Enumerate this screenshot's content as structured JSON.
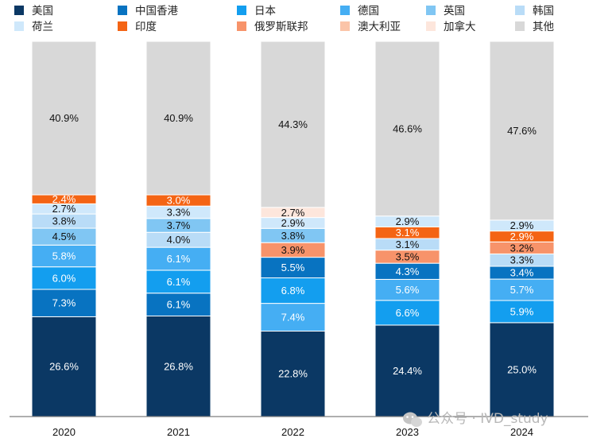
{
  "chart_data": {
    "type": "bar",
    "stacked": true,
    "categories": [
      "2020",
      "2021",
      "2022",
      "2023",
      "2024"
    ],
    "ylim": [
      0,
      100
    ],
    "grid": false,
    "legend_position": "top",
    "series": [
      {
        "name": "美国",
        "color": "#0b3864",
        "values": [
          26.6,
          26.8,
          22.8,
          24.4,
          25.0
        ]
      },
      {
        "name": "中国香港",
        "color": "#0873c1",
        "values": [
          7.3,
          6.1,
          5.5,
          4.3,
          3.4
        ]
      },
      {
        "name": "日本",
        "color": "#139eef",
        "values": [
          6.0,
          6.1,
          6.8,
          6.6,
          5.9
        ]
      },
      {
        "name": "德国",
        "color": "#45aef3",
        "values": [
          5.8,
          6.1,
          7.4,
          5.6,
          5.7
        ]
      },
      {
        "name": "英国",
        "color": "#80c6f3",
        "values": [
          4.5,
          3.7,
          3.8,
          null,
          null
        ]
      },
      {
        "name": "韩国",
        "color": "#b9dcf7",
        "values": [
          3.8,
          4.0,
          null,
          3.1,
          3.3
        ]
      },
      {
        "name": "荷兰",
        "color": "#cfe8fb",
        "values": [
          2.7,
          3.3,
          2.9,
          2.9,
          2.9
        ]
      },
      {
        "name": "印度",
        "color": "#f46414",
        "values": [
          2.4,
          3.0,
          null,
          3.1,
          2.9
        ]
      },
      {
        "name": "俄罗斯联邦",
        "color": "#f7936a",
        "values": [
          null,
          null,
          3.9,
          3.5,
          3.2
        ]
      },
      {
        "name": "澳大利亚",
        "color": "#fbc4a8",
        "values": [
          null,
          null,
          null,
          null,
          null
        ]
      },
      {
        "name": "加拿大",
        "color": "#fde6dc",
        "values": [
          null,
          null,
          2.7,
          null,
          null
        ]
      },
      {
        "name": "其他",
        "color": "#d8d8d8",
        "values": [
          40.9,
          40.9,
          44.3,
          46.6,
          47.6
        ]
      }
    ],
    "stack_order": [
      [
        "美国",
        "中国香港",
        "日本",
        "德国",
        "英国",
        "韩国",
        "荷兰",
        "印度",
        "其他"
      ],
      [
        "美国",
        "中国香港",
        "日本",
        "德国",
        "韩国",
        "英国",
        "荷兰",
        "印度",
        "其他"
      ],
      [
        "美国",
        "德国",
        "日本",
        "中国香港",
        "俄罗斯联邦",
        "英国",
        "荷兰",
        "加拿大",
        "其他"
      ],
      [
        "美国",
        "日本",
        "德国",
        "中国香港",
        "俄罗斯联邦",
        "韩国",
        "印度",
        "荷兰",
        "其他"
      ],
      [
        "美国",
        "日本",
        "德国",
        "中国香港",
        "韩国",
        "俄罗斯联邦",
        "印度",
        "荷兰",
        "其他"
      ]
    ],
    "labels": [
      [
        "26.6%",
        "7.3%",
        "6.0%",
        "5.8%",
        "4.5%",
        "3.8%",
        "2.7%",
        "2.4%",
        "40.9%"
      ],
      [
        "26.8%",
        "6.1%",
        "6.1%",
        "6.1%",
        "4.0%",
        "3.7%",
        "3.3%",
        "3.0%",
        "40.9%"
      ],
      [
        "22.8%",
        "7.4%",
        "6.8%",
        "5.5%",
        "3.9%",
        "3.8%",
        "2.9%",
        "2.7%",
        "44.3%"
      ],
      [
        "24.4%",
        "6.6%",
        "5.6%",
        "4.3%",
        "3.5%",
        "3.1%",
        "3.1%",
        "2.9%",
        "46.6%"
      ],
      [
        "25.0%",
        "5.9%",
        "5.7%",
        "3.4%",
        "3.3%",
        "3.2%",
        "2.9%",
        "2.9%",
        "47.6%"
      ]
    ]
  },
  "watermark": "公众号 · IVD_study"
}
